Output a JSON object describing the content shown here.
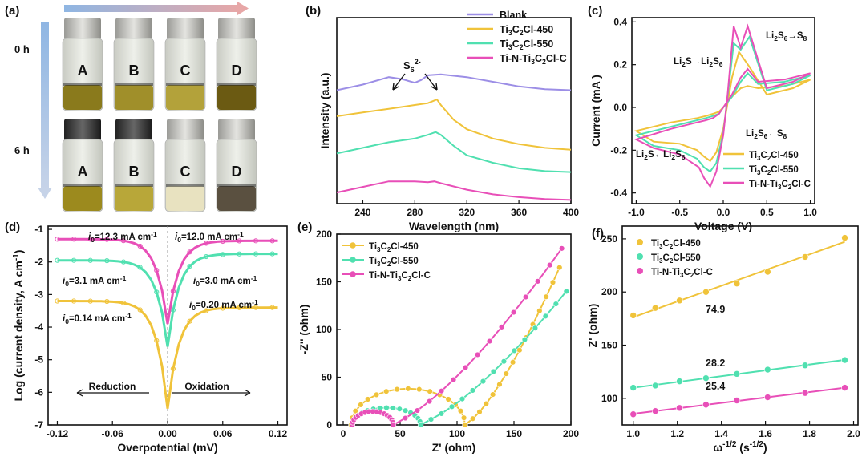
{
  "panels": {
    "a": {
      "label": "(a)",
      "rows": [
        {
          "time": "0 h",
          "vials": [
            "A",
            "B",
            "C",
            "D"
          ],
          "liquid": [
            "#8a7a1c",
            "#a08f2a",
            "#b3a23a",
            "#6b5a12"
          ]
        },
        {
          "time": "6 h",
          "vials": [
            "A",
            "B",
            "C",
            "D"
          ],
          "liquid": [
            "#9c8a1e",
            "#b8a739",
            "#e8e2c0",
            "#5a5040"
          ]
        }
      ],
      "colors": {
        "arrow_top": "#7fa6d6",
        "arrow_side": "#9bb7de"
      }
    }
  },
  "chart_data": [
    {
      "panel": "(b)",
      "type": "line",
      "title": "",
      "xlabel": "Wavelength (nm)",
      "ylabel": "Intensity (a.u.)",
      "xlim": [
        220,
        400
      ],
      "ylim": [
        0,
        1
      ],
      "xticks": [
        240,
        280,
        320,
        360,
        400
      ],
      "annotation": {
        "base": "S",
        "sub": "6",
        "sup": "2-"
      },
      "series": [
        {
          "name": "Blank",
          "color": "#9c8ee6",
          "x": [
            220,
            240,
            260,
            270,
            280,
            285,
            290,
            300,
            320,
            340,
            360,
            380,
            400
          ],
          "y": [
            0.61,
            0.64,
            0.68,
            0.67,
            0.65,
            0.665,
            0.69,
            0.695,
            0.68,
            0.655,
            0.63,
            0.615,
            0.61
          ]
        },
        {
          "name": "Ti3C2Cl-450",
          "color": "#f0c33a",
          "x": [
            220,
            240,
            260,
            280,
            290,
            297,
            300,
            310,
            320,
            340,
            360,
            380,
            400
          ],
          "y": [
            0.47,
            0.49,
            0.51,
            0.53,
            0.54,
            0.56,
            0.53,
            0.45,
            0.4,
            0.35,
            0.32,
            0.3,
            0.29
          ]
        },
        {
          "name": "Ti3C2Cl-550",
          "color": "#50e0b0",
          "x": [
            220,
            240,
            260,
            280,
            290,
            296,
            300,
            310,
            320,
            340,
            360,
            380,
            400
          ],
          "y": [
            0.27,
            0.3,
            0.33,
            0.35,
            0.37,
            0.385,
            0.37,
            0.31,
            0.26,
            0.22,
            0.19,
            0.175,
            0.17
          ]
        },
        {
          "name": "Ti-N-Ti3C2Cl-C",
          "color": "#e84fb8",
          "x": [
            220,
            240,
            260,
            280,
            290,
            295,
            300,
            320,
            340,
            360,
            380,
            400
          ],
          "y": [
            0.06,
            0.09,
            0.12,
            0.12,
            0.115,
            0.12,
            0.11,
            0.075,
            0.05,
            0.035,
            0.025,
            0.02
          ]
        }
      ],
      "legend_labels": [
        {
          "base": "Blank",
          "sub": "",
          "rest": ""
        },
        {
          "base": "Ti",
          "sub": "3",
          "mid": "C",
          "sub2": "2",
          "rest": "Cl-450"
        },
        {
          "base": "Ti",
          "sub": "3",
          "mid": "C",
          "sub2": "2",
          "rest": "Cl-550"
        },
        {
          "base": "Ti-N-Ti",
          "sub": "3",
          "mid": "C",
          "sub2": "2",
          "rest": "Cl-C"
        }
      ]
    },
    {
      "panel": "(c)",
      "type": "line",
      "title": "",
      "xlabel": "Voltage (V)",
      "ylabel": "Current (mA )",
      "xlim": [
        -1.05,
        1.05
      ],
      "ylim": [
        -0.45,
        0.42
      ],
      "xticks": [
        -1.0,
        -0.5,
        0.0,
        0.5,
        1.0
      ],
      "yticks": [
        -0.4,
        -0.2,
        0.0,
        0.2,
        0.4
      ],
      "annotations": [
        "Li2S→Li2S6",
        "Li2S6→S8",
        "Li2S6←S8",
        "Li2S←Li2S6"
      ],
      "series": [
        {
          "name": "Ti3C2Cl-450",
          "color": "#f0c33a",
          "x": [
            -1.0,
            -0.6,
            -0.3,
            -0.2,
            -0.12,
            -0.05,
            0.0,
            0.1,
            0.2,
            0.28,
            0.4,
            0.7,
            1.0,
            0.8,
            0.5,
            0.3,
            0.18,
            0.1,
            0.05,
            0.0,
            -0.08,
            -0.15,
            -0.22,
            -0.3,
            -0.5,
            -0.8,
            -1.0
          ],
          "y": [
            -0.11,
            -0.07,
            -0.05,
            -0.04,
            -0.03,
            -0.02,
            0.0,
            0.05,
            0.09,
            0.1,
            0.09,
            0.1,
            0.13,
            0.09,
            0.06,
            0.19,
            0.26,
            0.14,
            0.02,
            -0.1,
            -0.21,
            -0.25,
            -0.23,
            -0.2,
            -0.17,
            -0.16,
            -0.11
          ]
        },
        {
          "name": "Ti3C2Cl-550",
          "color": "#50e0b0",
          "x": [
            -1.0,
            -0.6,
            -0.3,
            -0.2,
            -0.12,
            -0.05,
            0.0,
            0.1,
            0.2,
            0.28,
            0.4,
            0.7,
            1.0,
            0.8,
            0.5,
            0.3,
            0.2,
            0.12,
            0.05,
            0.0,
            -0.08,
            -0.15,
            -0.22,
            -0.3,
            -0.5,
            -0.8,
            -1.0
          ],
          "y": [
            -0.13,
            -0.09,
            -0.06,
            -0.05,
            -0.04,
            -0.03,
            0.0,
            0.05,
            0.12,
            0.16,
            0.11,
            0.12,
            0.15,
            0.11,
            0.08,
            0.33,
            0.27,
            0.3,
            0.05,
            -0.12,
            -0.26,
            -0.3,
            -0.28,
            -0.24,
            -0.2,
            -0.18,
            -0.13
          ]
        },
        {
          "name": "Ti-N-Ti3C2Cl-C",
          "color": "#e84fb8",
          "x": [
            -1.0,
            -0.6,
            -0.3,
            -0.2,
            -0.12,
            -0.05,
            0.0,
            0.1,
            0.2,
            0.28,
            0.4,
            0.7,
            1.0,
            0.8,
            0.5,
            0.28,
            0.2,
            0.12,
            0.05,
            0.0,
            -0.08,
            -0.15,
            -0.22,
            -0.28,
            -0.5,
            -0.8,
            -1.0
          ],
          "y": [
            -0.15,
            -0.1,
            -0.07,
            -0.06,
            -0.05,
            -0.03,
            0.0,
            0.06,
            0.14,
            0.18,
            0.12,
            0.13,
            0.16,
            0.12,
            0.09,
            0.38,
            0.28,
            0.38,
            0.06,
            -0.13,
            -0.3,
            -0.37,
            -0.33,
            -0.28,
            -0.22,
            -0.19,
            -0.15
          ]
        }
      ],
      "legend_labels": [
        {
          "base": "Ti",
          "sub": "3",
          "mid": "C",
          "sub2": "2",
          "rest": "Cl-450"
        },
        {
          "base": "Ti",
          "sub": "3",
          "mid": "C",
          "sub2": "2",
          "rest": "Cl-550"
        },
        {
          "base": "Ti-N-Ti",
          "sub": "3",
          "mid": "C",
          "sub2": "2",
          "rest": "Cl-C"
        }
      ]
    },
    {
      "panel": "(d)",
      "type": "line",
      "title": "",
      "xlabel": "Overpotential (mV)",
      "ylabel": "Log (current density, A cm",
      "ylabel_sup": "-1",
      "ylabel_end": ")",
      "xlim": [
        -0.13,
        0.13
      ],
      "ylim": [
        -7,
        -0.9
      ],
      "xticks": [
        -0.12,
        -0.06,
        0.0,
        0.06,
        0.12
      ],
      "yticks": [
        -7,
        -6,
        -5,
        -4,
        -3,
        -2,
        -1
      ],
      "arrows": {
        "left": "Reduction",
        "right": "Oxidation"
      },
      "labels": [
        {
          "text": "i0=12.3 mA cm-1",
          "color": "#e84fb8"
        },
        {
          "text": "i0=12.0 mA cm-1",
          "color": "#e84fb8"
        },
        {
          "text": "i0=3.1 mA cm-1",
          "color": "#50e0b0"
        },
        {
          "text": "i0=3.0 mA cm-1",
          "color": "#50e0b0"
        },
        {
          "text": "i0=0.14 mA cm-1",
          "color": "#f0c33a"
        },
        {
          "text": "i0=0.20 mA cm-1",
          "color": "#f0c33a"
        }
      ],
      "series": [
        {
          "name": "Ti3C2Cl-450",
          "color": "#f0c33a",
          "min": -6.5,
          "left": -3.2,
          "right": -3.4
        },
        {
          "name": "Ti3C2Cl-550",
          "color": "#50e0b0",
          "min": -4.6,
          "left": -1.95,
          "right": -1.75
        },
        {
          "name": "Ti-N-Ti3C2Cl-C",
          "color": "#e84fb8",
          "min": -3.9,
          "left": -1.3,
          "right": -1.35
        }
      ]
    },
    {
      "panel": "(e)",
      "type": "scatter",
      "title": "",
      "xlabel": "Z' (ohm)",
      "ylabel": "-Z'' (ohm)",
      "xlim": [
        0,
        200
      ],
      "ylim": [
        0,
        200
      ],
      "xticks": [
        0,
        50,
        100,
        150,
        200
      ],
      "yticks": [
        0,
        50,
        100,
        150,
        200
      ],
      "series": [
        {
          "name": "Ti3C2Cl-450",
          "color": "#f0c33a",
          "start": 8,
          "end": 108,
          "cx": 57,
          "r": 38,
          "tail_end_x": 190,
          "tail_end_y": 165
        },
        {
          "name": "Ti3C2Cl-550",
          "color": "#50e0b0",
          "start": 8,
          "end": 68,
          "cx": 38,
          "r": 18,
          "tail_end_x": 196,
          "tail_end_y": 140
        },
        {
          "name": "Ti-N-Ti3C2Cl-C",
          "color": "#e84fb8",
          "start": 8,
          "end": 44,
          "cx": 26,
          "r": 14,
          "tail_end_x": 192,
          "tail_end_y": 185
        }
      ],
      "legend_labels": [
        {
          "base": "Ti",
          "sub": "3",
          "mid": "C",
          "sub2": "2",
          "rest": "Cl-450"
        },
        {
          "base": "Ti",
          "sub": "3",
          "mid": "C",
          "sub2": "2",
          "rest": "Cl-550"
        },
        {
          "base": "Ti-N-Ti",
          "sub": "3",
          "mid": "C",
          "sub2": "2",
          "rest": "Cl-C"
        }
      ]
    },
    {
      "panel": "(f)",
      "type": "scatter",
      "title": "",
      "xlabel": "ω",
      "xlabel_sup": "-1/2",
      "xlabel_unit": " (s",
      "xlabel_unit_sup": "-1/2",
      "xlabel_end": ")",
      "ylabel": "Z' (ohm)",
      "xlim": [
        0.95,
        2.02
      ],
      "ylim": [
        75,
        262
      ],
      "xticks": [
        1.0,
        1.2,
        1.4,
        1.6,
        1.8,
        2.0
      ],
      "yticks": [
        100,
        150,
        200,
        250
      ],
      "x": [
        1.0,
        1.1,
        1.21,
        1.33,
        1.47,
        1.61,
        1.78,
        1.96
      ],
      "series": [
        {
          "name": "Ti3C2Cl-450",
          "color": "#f0c33a",
          "slope_label": "74.9",
          "y": [
            178,
            185,
            192,
            200,
            208,
            219,
            233,
            251
          ]
        },
        {
          "name": "Ti3C2Cl-550",
          "color": "#50e0b0",
          "slope_label": "28.2",
          "y": [
            110,
            112,
            116,
            119,
            123,
            127,
            131,
            136
          ]
        },
        {
          "name": "Ti-N-Ti3C2Cl-C",
          "color": "#e84fb8",
          "slope_label": "25.4",
          "y": [
            85,
            88,
            91,
            94,
            98,
            101,
            105,
            110
          ]
        }
      ],
      "legend_labels": [
        {
          "base": "Ti",
          "sub": "3",
          "mid": "C",
          "sub2": "2",
          "rest": "Cl-450"
        },
        {
          "base": "Ti",
          "sub": "3",
          "mid": "C",
          "sub2": "2",
          "rest": "Cl-550"
        },
        {
          "base": "Ti-N-Ti",
          "sub": "3",
          "mid": "C",
          "sub2": "2",
          "rest": "Cl-C"
        }
      ]
    }
  ]
}
